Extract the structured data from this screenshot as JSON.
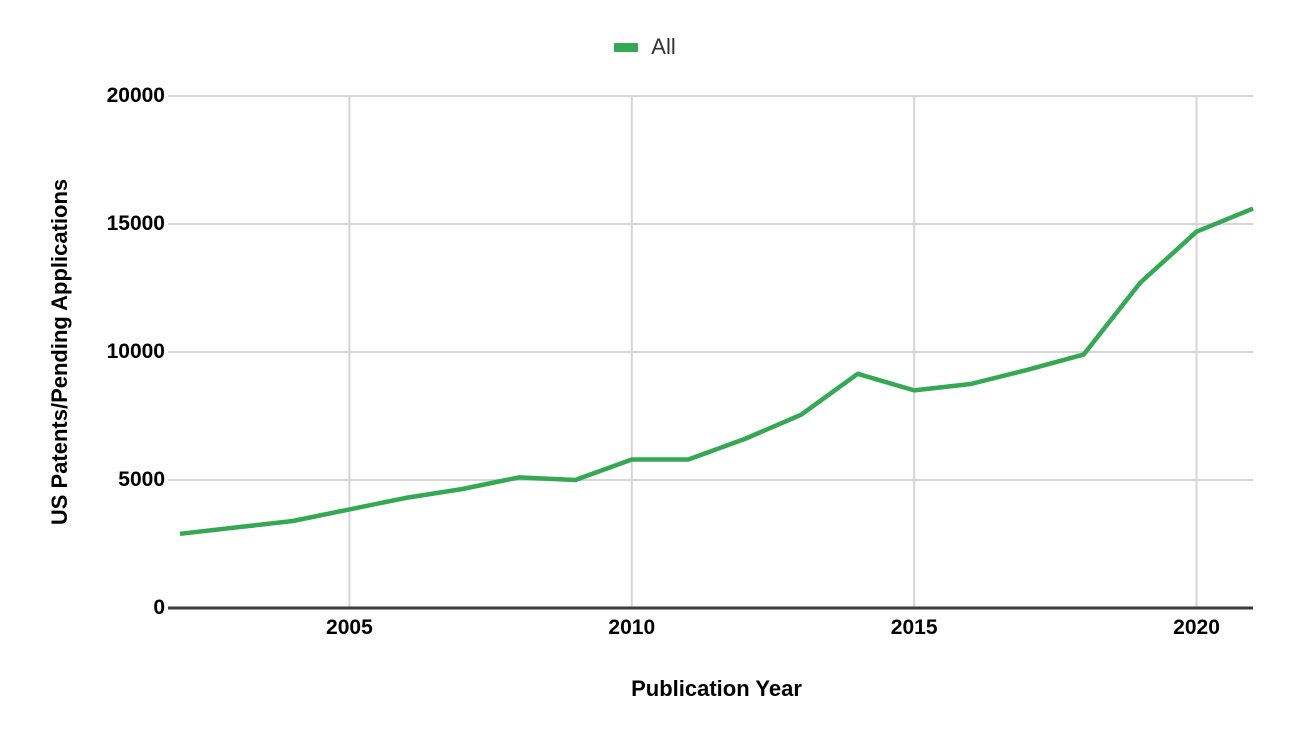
{
  "chart_data": {
    "type": "line",
    "title": "",
    "xlabel": "Publication Year",
    "ylabel": "US Patents/Pending Applications",
    "x": [
      2002,
      2003,
      2004,
      2005,
      2006,
      2007,
      2008,
      2009,
      2010,
      2011,
      2012,
      2013,
      2014,
      2015,
      2016,
      2017,
      2018,
      2019,
      2020,
      2021
    ],
    "series": [
      {
        "name": "All",
        "color": "#34a853",
        "values": [
          2900,
          3150,
          3400,
          3850,
          4300,
          4650,
          5100,
          5000,
          5800,
          5800,
          6600,
          7550,
          9150,
          8500,
          8750,
          9300,
          9900,
          12700,
          14700,
          15600
        ]
      }
    ],
    "xlim": [
      2002,
      2021
    ],
    "ylim": [
      0,
      20000
    ],
    "x_ticks": [
      2005,
      2010,
      2015,
      2020
    ],
    "y_ticks": [
      0,
      5000,
      10000,
      15000,
      20000
    ],
    "grid": true,
    "legend_position": "top-center",
    "colors": {
      "grid": "#d6d6d6",
      "axis": "#3b3b3b",
      "tick_label": "#000000",
      "legend_text": "#333333"
    }
  }
}
